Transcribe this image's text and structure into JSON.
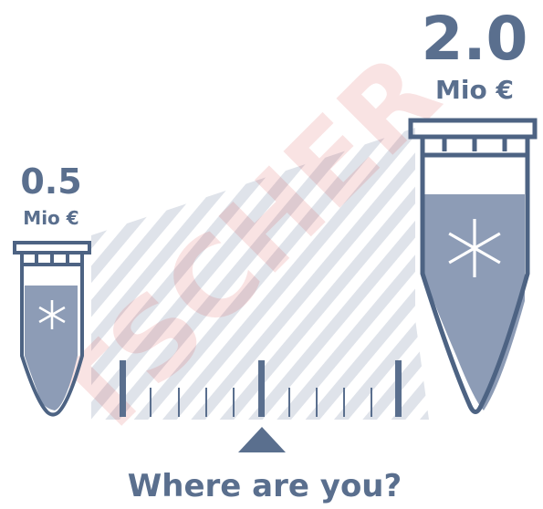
{
  "left_label": {
    "amount": "0.5",
    "unit": "Mio €"
  },
  "right_label": {
    "amount": "2.0",
    "unit": "Mio €"
  },
  "question": "Where are you?",
  "watermark": "TSCHER"
}
